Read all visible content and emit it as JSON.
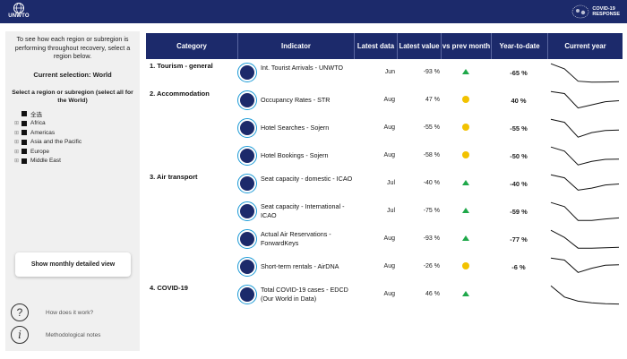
{
  "header": {
    "logo_text": "UNWTO",
    "covid_logo_line1": "COVID-19",
    "covid_logo_line2": "RESPONSE",
    "colors": {
      "bar": "#1c2a6b",
      "up": "#1fa84a",
      "neutral": "#f2c200",
      "icon_ring": "#1b9ad6"
    }
  },
  "sidebar": {
    "intro": "To see how each region or subregion is performing throughout recovery, select a region below.",
    "current_selection": "Current selection: World",
    "select_label": "Select a region or subregion (select all for the World)",
    "regions": [
      {
        "label": "全选",
        "expandable": false
      },
      {
        "label": "Africa",
        "expandable": true
      },
      {
        "label": "Americas",
        "expandable": true
      },
      {
        "label": "Asia and the Pacific",
        "expandable": true
      },
      {
        "label": "Europe",
        "expandable": true
      },
      {
        "label": "Middle East",
        "expandable": true
      }
    ],
    "detail_button": "Show monthly detailed view",
    "how_label": "How does it work?",
    "how_icon": "?",
    "notes_label": "Methodological notes",
    "notes_icon": "i"
  },
  "table": {
    "headers": {
      "category": "Category",
      "indicator": "Indicator",
      "latest_data": "Latest data",
      "latest_value": "Latest value",
      "vs_prev": "vs prev month",
      "ytd": "Year-to-date",
      "current_year": "Current year"
    },
    "rows": [
      {
        "category": "1. Tourism - general",
        "indicator": "Int. Tourist Arrivals - UNWTO",
        "icon": "globe-arrivals-icon",
        "date": "Jun",
        "value": "-93 %",
        "trend": "up",
        "ytd": "-65 %",
        "spark": [
          0.95,
          0.7,
          0.1,
          0.05,
          0.06,
          0.08
        ]
      },
      {
        "category": "2. Accommodation",
        "indicator": "Occupancy Rates - STR",
        "icon": "hotel-icon",
        "date": "Aug",
        "value": "47 %",
        "trend": "neutral",
        "ytd": "40 %",
        "spark": [
          0.95,
          0.85,
          0.15,
          0.3,
          0.45,
          0.5
        ]
      },
      {
        "category": "",
        "indicator": "Hotel Searches - Sojern",
        "icon": "hotel-search-icon",
        "date": "Aug",
        "value": "-55 %",
        "trend": "neutral",
        "ytd": "-55 %",
        "spark": [
          0.95,
          0.8,
          0.08,
          0.3,
          0.4,
          0.42
        ]
      },
      {
        "category": "",
        "indicator": "Hotel Bookings - Sojern",
        "icon": "hotel-booking-icon",
        "date": "Aug",
        "value": "-58 %",
        "trend": "neutral",
        "ytd": "-50 %",
        "spark": [
          0.95,
          0.75,
          0.08,
          0.25,
          0.35,
          0.36
        ]
      },
      {
        "category": "3. Air transport",
        "indicator": "Seat capacity - domestic - ICAO",
        "icon": "plane-domestic-icon",
        "date": "Jul",
        "value": "-40 %",
        "trend": "up",
        "ytd": "-40 %",
        "spark": [
          0.95,
          0.8,
          0.2,
          0.3,
          0.45,
          0.5
        ]
      },
      {
        "category": "",
        "indicator": "Seat capacity - International - ICAO",
        "icon": "plane-international-icon",
        "date": "Jul",
        "value": "-75 %",
        "trend": "up",
        "ytd": "-59 %",
        "spark": [
          0.95,
          0.75,
          0.08,
          0.08,
          0.15,
          0.2
        ]
      },
      {
        "category": "",
        "indicator": "Actual Air Reservations - ForwardKeys",
        "icon": "plane-reservation-icon",
        "date": "Aug",
        "value": "-93 %",
        "trend": "up",
        "ytd": "-77 %",
        "spark": [
          0.95,
          0.6,
          0.08,
          0.08,
          0.1,
          0.12
        ]
      },
      {
        "category": "",
        "indicator": "Short-term rentals - AirDNA",
        "icon": "rental-icon",
        "date": "Aug",
        "value": "-26 %",
        "trend": "neutral",
        "ytd": "-6 %",
        "spark": [
          0.95,
          0.85,
          0.25,
          0.45,
          0.6,
          0.62
        ]
      },
      {
        "category": "4. COVID-19",
        "indicator": "Total COVID-19 cases - EDCD (Our World in Data)",
        "icon": "covid-cases-icon",
        "date": "Aug",
        "value": "46 %",
        "trend": "up",
        "ytd": "",
        "spark": [
          0.95,
          0.4,
          0.2,
          0.12,
          0.08,
          0.06
        ]
      }
    ]
  }
}
